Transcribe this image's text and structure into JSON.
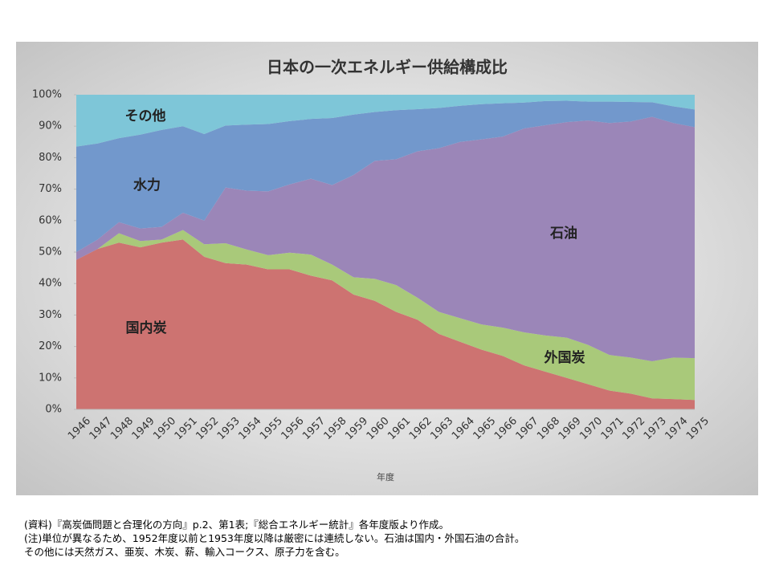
{
  "chart_data": {
    "type": "stacked-area",
    "title": "日本の一次エネルギー供給構成比",
    "x_label": "年度",
    "categories": [
      "1946",
      "1947",
      "1948",
      "1949",
      "1950",
      "1951",
      "1952",
      "1953",
      "1954",
      "1955",
      "1956",
      "1957",
      "1958",
      "1959",
      "1960",
      "1961",
      "1962",
      "1963",
      "1964",
      "1965",
      "1966",
      "1967",
      "1968",
      "1969",
      "1970",
      "1971",
      "1972",
      "1973",
      "1974",
      "1975"
    ],
    "series": [
      {
        "name": "国内炭",
        "color": "#cd7371",
        "values": [
          47.5,
          51,
          53,
          51.5,
          53,
          54,
          48.5,
          46.5,
          46,
          44.5,
          44.5,
          42.5,
          41,
          36.5,
          34.5,
          31,
          28.5,
          24,
          21.5,
          19,
          17,
          14,
          12,
          10,
          8,
          6,
          5,
          3.5,
          3.3,
          3
        ]
      },
      {
        "name": "外国炭",
        "color": "#a9c97a",
        "values": [
          0,
          0,
          3,
          2,
          1,
          3,
          4,
          6.3,
          4.8,
          4.5,
          5.3,
          6.7,
          5,
          5.5,
          7,
          8.5,
          7,
          7,
          7.5,
          8,
          9,
          10.5,
          11.5,
          12.8,
          12.5,
          11.3,
          11.5,
          11.8,
          13.2,
          13.3
        ]
      },
      {
        "name": "石油",
        "color": "#9b86b8",
        "values": [
          2.5,
          3,
          3.5,
          4,
          4,
          5.5,
          7.5,
          17.7,
          18.7,
          20.3,
          21.7,
          24.1,
          25.3,
          32.5,
          37.5,
          40,
          46.5,
          52,
          56,
          58.8,
          60.7,
          64.8,
          66.8,
          68.5,
          71.3,
          73.7,
          75,
          77.7,
          74.5,
          73.4
        ]
      },
      {
        "name": "水力",
        "color": "#7298cc",
        "values": [
          33.5,
          30.5,
          26.7,
          29.8,
          30.8,
          27.5,
          27.5,
          19.7,
          21,
          21.4,
          20.1,
          19,
          21.3,
          19.2,
          15.5,
          15.6,
          13.4,
          12.8,
          11.5,
          11.2,
          10.6,
          8.2,
          7.7,
          6.8,
          6,
          6.8,
          6.2,
          4.6,
          5.3,
          5.6
        ]
      },
      {
        "name": "その他",
        "color": "#7ec6d8",
        "values": [
          16.5,
          15.5,
          13.8,
          12.7,
          11.2,
          10,
          12.5,
          9.8,
          9.5,
          9.3,
          8.4,
          7.7,
          7.4,
          6.3,
          5.5,
          4.9,
          4.6,
          4.2,
          3.5,
          3,
          2.7,
          2.5,
          2,
          1.9,
          2.2,
          2.2,
          2.3,
          2.4,
          3.7,
          4.7
        ]
      }
    ],
    "ylim": [
      0,
      100
    ],
    "yticks": [
      {
        "value": 0,
        "label": "0%"
      },
      {
        "value": 10,
        "label": "10%"
      },
      {
        "value": 20,
        "label": "20%"
      },
      {
        "value": 30,
        "label": "30%"
      },
      {
        "value": 40,
        "label": "40%"
      },
      {
        "value": 50,
        "label": "50%"
      },
      {
        "value": 60,
        "label": "60%"
      },
      {
        "value": 70,
        "label": "70%"
      },
      {
        "value": 80,
        "label": "80%"
      },
      {
        "value": 90,
        "label": "90%"
      },
      {
        "value": 100,
        "label": "100%"
      }
    ]
  },
  "notes": [
    "(資料)『高炭価問題と合理化の方向』p.2、第1表;『総合エネルギー統計』各年度版より作成。",
    "(注)単位が異なるため、1952年度以前と1953年度以降は厳密には連続しない。石油は国内・外国石油の合計。",
    "その他には天然ガス、亜炭、木炭、薪、輸入コークス、原子力を含む。"
  ]
}
